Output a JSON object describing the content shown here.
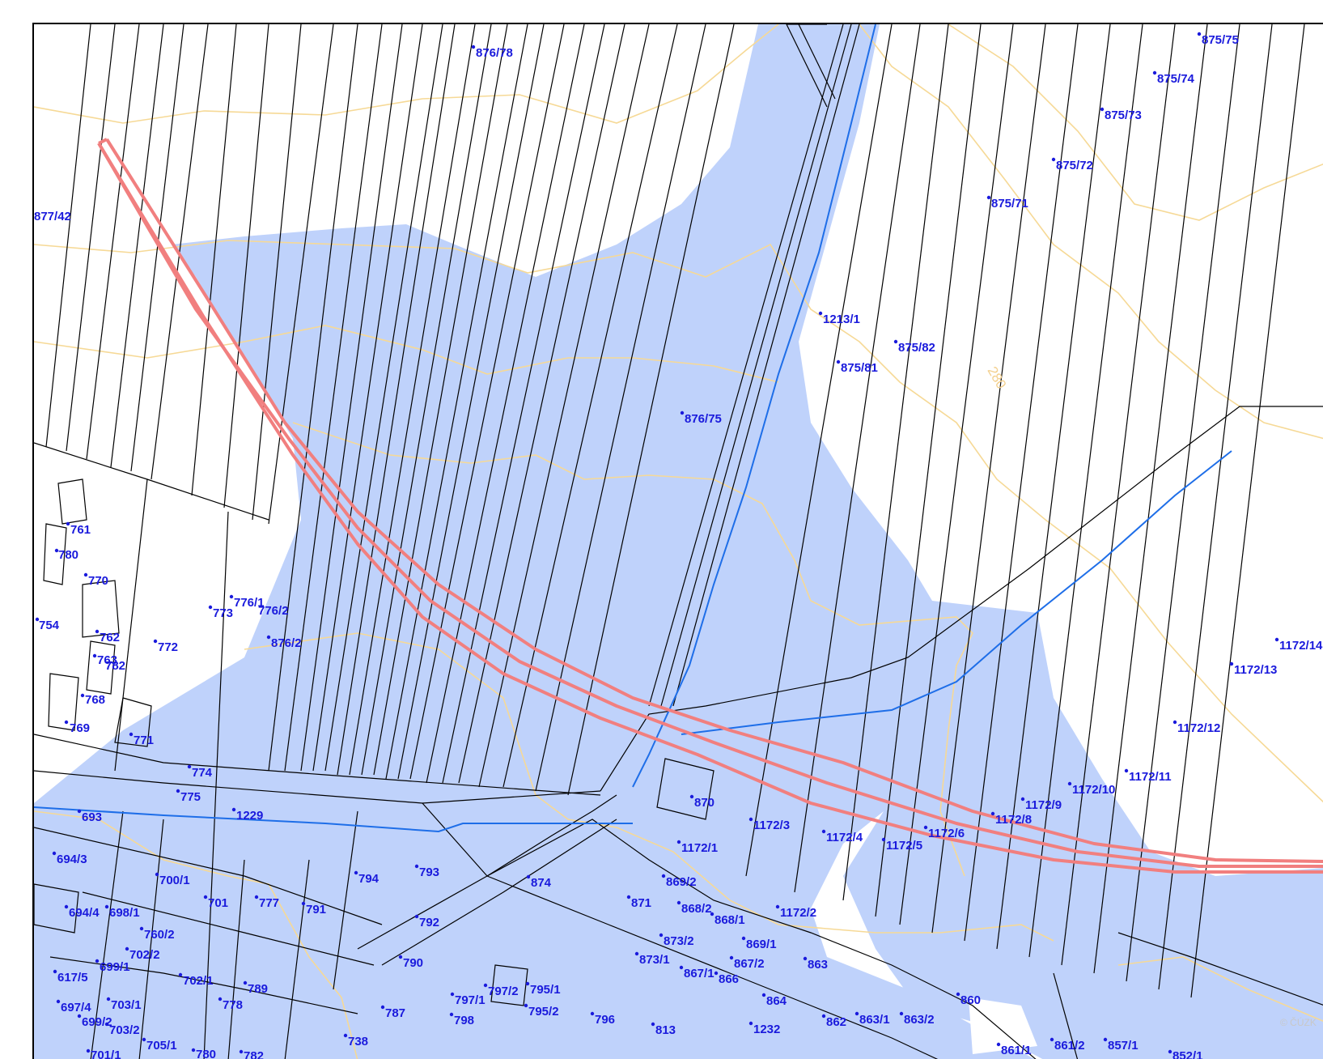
{
  "colors": {
    "flood_zone": "#bfd2fb",
    "parcel_line": "#000000",
    "contour": "#f6d996",
    "stream": "#1e6ee8",
    "corridor": "#f17f7f",
    "label": "#1a1adc",
    "road_fill": "#bfd2fb"
  },
  "icons": [
    "parcel-point-icon"
  ],
  "contour_labels": [
    "280"
  ],
  "watermark": "© ČÚZK",
  "parcel_labels": [
    "876/78",
    "875/75",
    "875/74",
    "875/73",
    "875/72",
    "875/71",
    "877/42",
    "1213/1",
    "875/82",
    "875/81",
    "876/75",
    "761",
    "780",
    "770",
    "773",
    "776/1",
    "776/2",
    "876/2",
    "754",
    "762",
    "772",
    "763",
    "782",
    "768",
    "769",
    "771",
    "774",
    "775",
    "693",
    "1229",
    "870",
    "1172/3",
    "1172/4",
    "1172/5",
    "1172/6",
    "1172/8",
    "1172/9",
    "1172/10",
    "1172/11",
    "1172/12",
    "1172/13",
    "1172/14",
    "694/3",
    "700/1",
    "701",
    "777",
    "791",
    "794",
    "793",
    "874",
    "869/2",
    "871",
    "868/2",
    "868/1",
    "1172/1",
    "1172/2",
    "694/4",
    "698/1",
    "792",
    "760/2",
    "702/2",
    "790",
    "873/2",
    "869/1",
    "873/1",
    "867/2",
    "699/1",
    "702/1",
    "789",
    "867/1",
    "866",
    "864",
    "863",
    "617/5",
    "703/1",
    "778",
    "787",
    "797/1",
    "797/2",
    "795/1",
    "798",
    "795/2",
    "796",
    "813",
    "1232",
    "862",
    "863/1",
    "863/2",
    "860",
    "697/4",
    "699/2",
    "703/2",
    "705/1",
    "780",
    "782",
    "738",
    "861/1",
    "861/2",
    "857/1",
    "852/1",
    "701/1"
  ]
}
